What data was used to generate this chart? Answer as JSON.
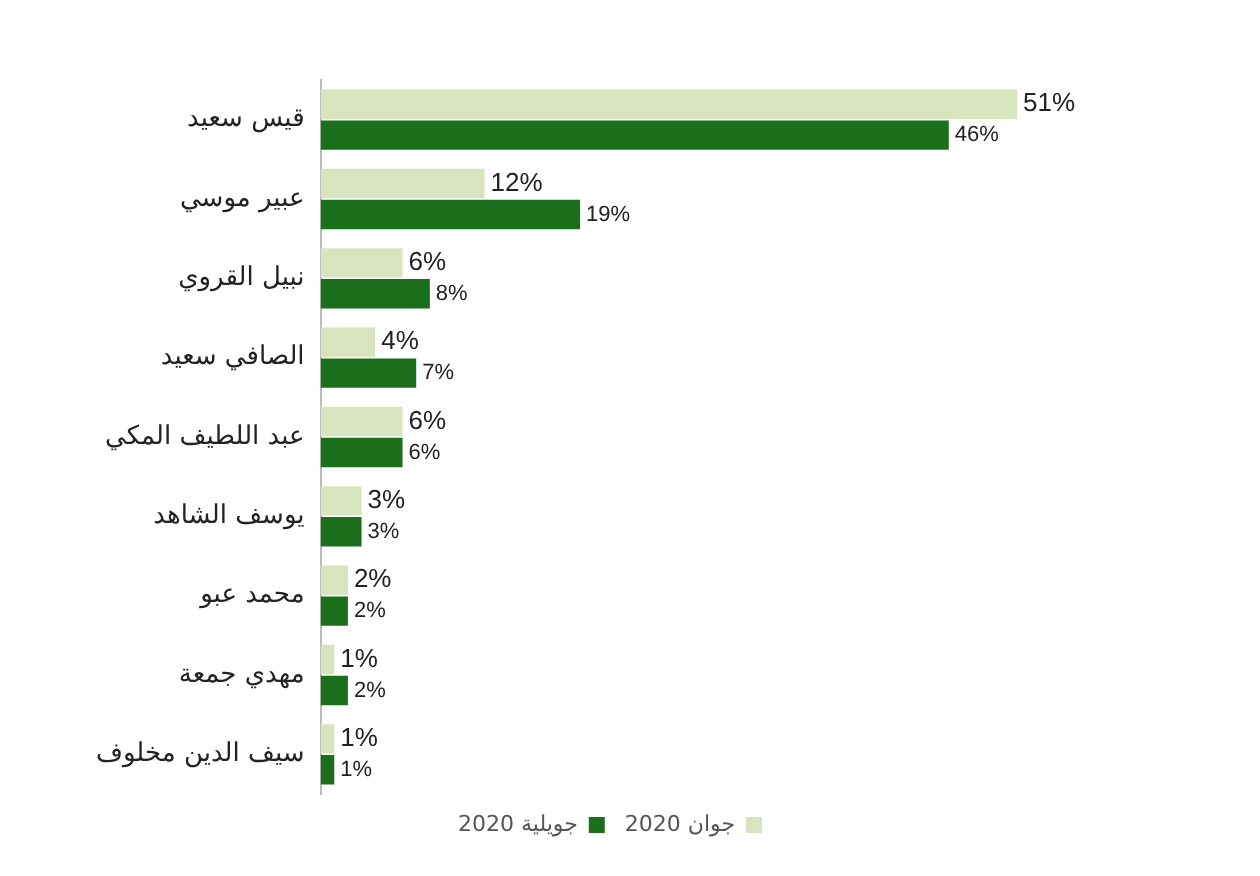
{
  "chart_data": {
    "type": "bar",
    "orientation": "horizontal",
    "legend": "bottom",
    "categories": [
      "قيس سعيد",
      "عبير موسي",
      "نبيل القروي",
      "الصافي سعيد",
      "عبد اللطيف المكي",
      "يوسف الشاهد",
      "محمد عبو",
      "مهدي جمعة",
      "سيف الدين مخلوف"
    ],
    "series": [
      {
        "name": "جوان 2020",
        "color": "#d7e4bd",
        "values": [
          51,
          12,
          6,
          4,
          6,
          3,
          2,
          1,
          1
        ],
        "value_labels": [
          "51%",
          "12%",
          "6%",
          "4%",
          "6%",
          "3%",
          "2%",
          "1%",
          "1%"
        ]
      },
      {
        "name": "جويلية 2020",
        "color": "#1b6f1b",
        "values": [
          46,
          19,
          8,
          7,
          6,
          3,
          2,
          2,
          1
        ],
        "value_labels": [
          "46%",
          "19%",
          "8%",
          "7%",
          "6%",
          "3%",
          "2%",
          "2%",
          "1%"
        ]
      }
    ]
  }
}
